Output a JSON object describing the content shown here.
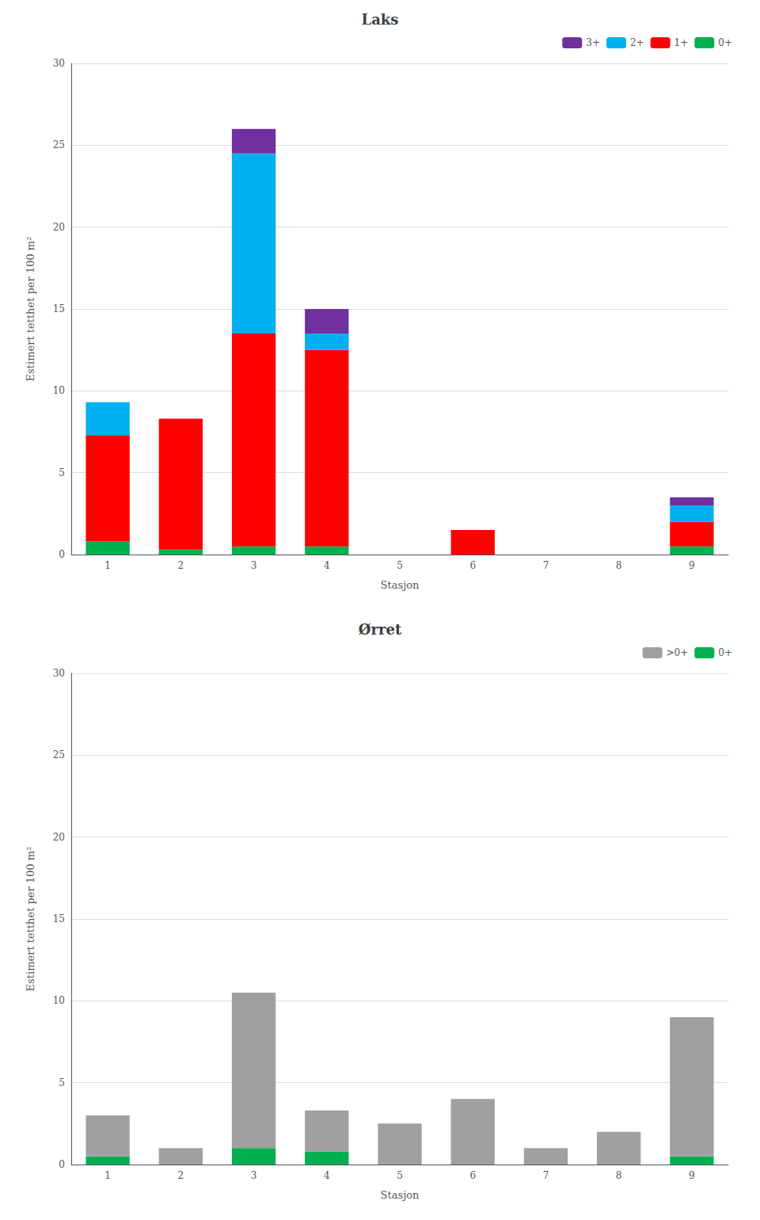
{
  "chart_data": [
    {
      "type": "bar",
      "title": "Laks",
      "x_label": "Stasjon",
      "y_label": "Estimert tetthet per 100 m²",
      "categories": [
        1,
        2,
        3,
        4,
        5,
        6,
        7,
        8,
        9
      ],
      "series": [
        {
          "name": "3+",
          "color": "#7030a0",
          "values": [
            0,
            0,
            1.5,
            1.5,
            0,
            0,
            0,
            0,
            0.5
          ]
        },
        {
          "name": "2+",
          "color": "#00b0f0",
          "values": [
            2,
            0,
            11.0,
            1.0,
            0,
            0,
            0,
            0,
            1.0
          ]
        },
        {
          "name": "1+",
          "color": "#ff0000",
          "values": [
            6.5,
            8.0,
            13.0,
            12.0,
            0,
            1.5,
            0,
            0,
            1.5
          ]
        },
        {
          "name": "0+",
          "color": "#00b050",
          "values": [
            0.8,
            0.3,
            0.5,
            0.5,
            0,
            0,
            0,
            0,
            0.5
          ]
        }
      ],
      "stacked": true,
      "ylim": [
        0,
        30
      ],
      "yticks": [
        0,
        5,
        10,
        15,
        20,
        25,
        30
      ],
      "grid": true,
      "legend": "upper right"
    },
    {
      "type": "bar",
      "title": "Ørret",
      "x_label": "Stasjon",
      "y_label": "Estimert tetthet per 100 m²",
      "categories": [
        1,
        2,
        3,
        4,
        5,
        6,
        7,
        8,
        9
      ],
      "series": [
        {
          "name": ">0+",
          "color": "#a0a0a0",
          "values": [
            2.5,
            1.0,
            9.5,
            2.5,
            2.5,
            4.0,
            1.0,
            2.0,
            8.5
          ]
        },
        {
          "name": "0+",
          "color": "#00b050",
          "values": [
            0.5,
            0,
            1.0,
            0.8,
            0,
            0,
            0,
            0,
            0.5
          ]
        }
      ],
      "stacked": true,
      "ylim": [
        0,
        30
      ],
      "yticks": [
        0,
        5,
        10,
        15,
        20,
        25,
        30
      ],
      "grid": true,
      "legend": "upper right"
    }
  ]
}
